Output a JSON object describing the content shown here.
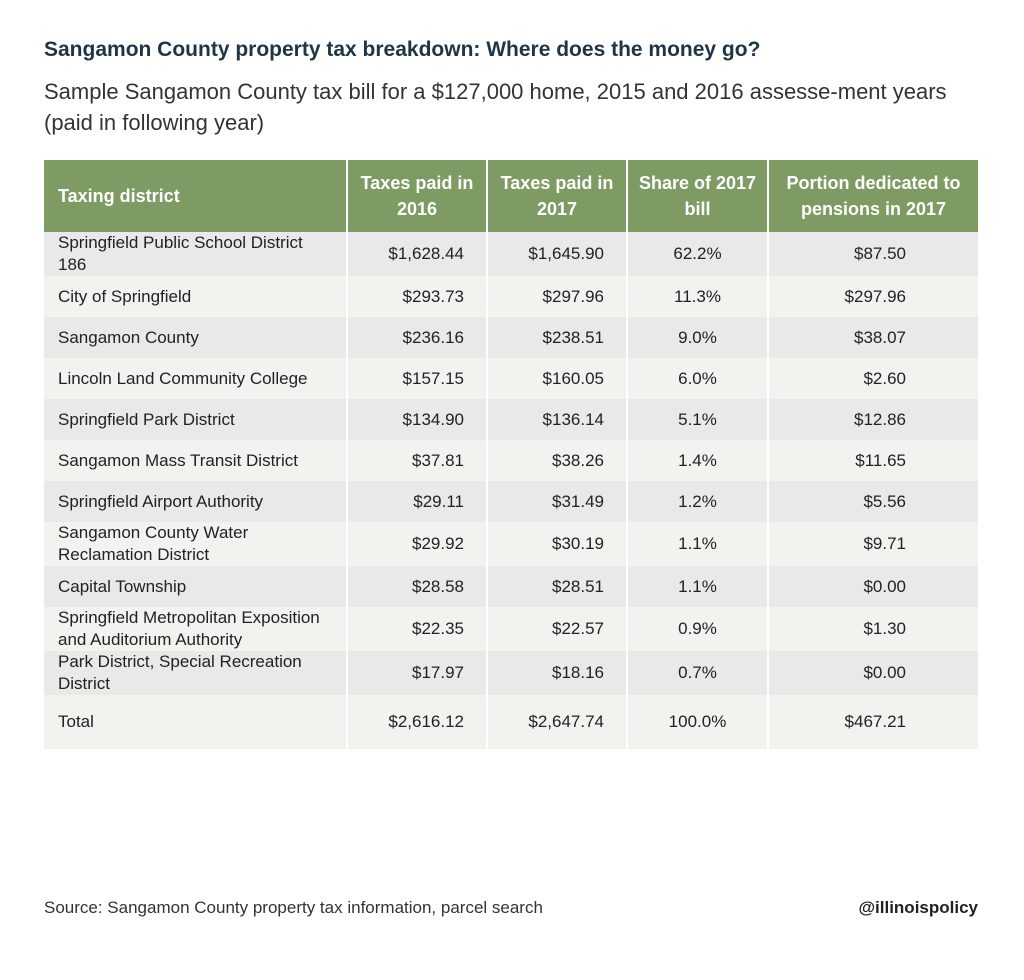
{
  "header": {
    "title": "Sangamon County property tax breakdown: Where does the money go?",
    "subtitle": "Sample Sangamon County tax bill for a $127,000 home, 2015 and 2016 assesse-ment years (paid in following year)"
  },
  "table": {
    "columns": [
      "Taxing district",
      "Taxes paid in 2016",
      "Taxes paid in 2017",
      "Share of 2017 bill",
      "Portion dedicated to pensions in 2017"
    ],
    "rows": [
      [
        "Springfield Public School District 186",
        "$1,628.44",
        "$1,645.90",
        "62.2%",
        "$87.50"
      ],
      [
        "City of Springfield",
        "$293.73",
        "$297.96",
        "11.3%",
        "$297.96"
      ],
      [
        "Sangamon County",
        "$236.16",
        "$238.51",
        "9.0%",
        "$38.07"
      ],
      [
        "Lincoln Land Community College",
        "$157.15",
        "$160.05",
        "6.0%",
        "$2.60"
      ],
      [
        "Springfield Park District",
        "$134.90",
        "$136.14",
        "5.1%",
        "$12.86"
      ],
      [
        "Sangamon Mass Transit District",
        "$37.81",
        "$38.26",
        "1.4%",
        "$11.65"
      ],
      [
        "Springfield Airport Authority",
        "$29.11",
        "$31.49",
        "1.2%",
        "$5.56"
      ],
      [
        "Sangamon County Water Reclamation District",
        "$29.92",
        "$30.19",
        "1.1%",
        "$9.71"
      ],
      [
        "Capital Township",
        "$28.58",
        "$28.51",
        "1.1%",
        "$0.00"
      ],
      [
        "Springfield Metropolitan Exposition and Auditorium Authority",
        "$22.35",
        "$22.57",
        "0.9%",
        "$1.30"
      ],
      [
        "Park District, Special Recreation District",
        "$17.97",
        "$18.16",
        "0.7%",
        "$0.00"
      ],
      [
        "Total",
        "$2,616.12",
        "$2,647.74",
        "100.0%",
        "$467.21"
      ]
    ]
  },
  "footer": {
    "source": "Source: Sangamon County property tax information, parcel search",
    "handle": "@illinoispolicy"
  }
}
